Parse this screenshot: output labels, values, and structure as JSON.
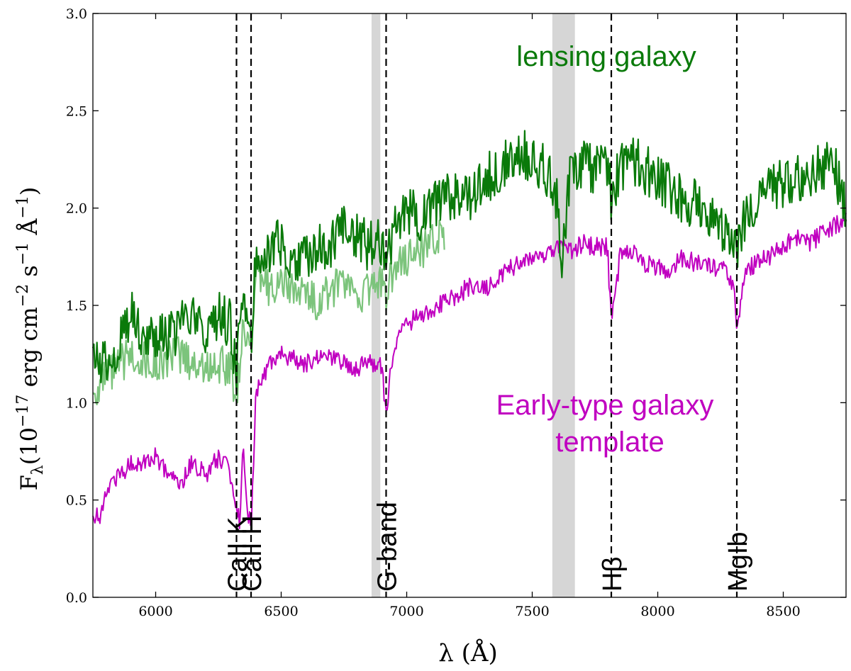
{
  "chart_data": {
    "type": "line",
    "xlabel": "λ (Å)",
    "ylabel": "F",
    "ylabel_sub": "λ",
    "ylabel_units_prefix": "(10",
    "ylabel_exp1": "−17",
    "ylabel_units_mid": " erg cm",
    "ylabel_exp2": "−2",
    "ylabel_units_mid2": " s",
    "ylabel_exp3": "−1",
    "ylabel_units_mid3": " Å",
    "ylabel_exp4": "−1",
    "ylabel_units_suffix": ")",
    "xlim": [
      5750,
      8750
    ],
    "ylim": [
      0.0,
      3.0
    ],
    "xticks": [
      6000,
      6500,
      7000,
      7500,
      8000,
      8500
    ],
    "xtick_labels": [
      "6000",
      "6500",
      "7000",
      "7500",
      "8000",
      "8500"
    ],
    "yticks": [
      0.0,
      0.5,
      1.0,
      1.5,
      2.0,
      2.5,
      3.0
    ],
    "ytick_labels": [
      "0.0",
      "0.5",
      "1.0",
      "1.5",
      "2.0",
      "2.5",
      "3.0"
    ],
    "shaded_bands": [
      {
        "x0": 6860,
        "x1": 6895
      },
      {
        "x0": 7580,
        "x1": 7670
      }
    ],
    "lines": [
      {
        "x": 6322,
        "label": "CaII K"
      },
      {
        "x": 6380,
        "label": "CaII H"
      },
      {
        "x": 6918,
        "label": "G-band"
      },
      {
        "x": 7815,
        "label": "Hβ"
      },
      {
        "x": 8315,
        "label": "MgIb"
      }
    ],
    "annotations": {
      "lensing": "lensing galaxy",
      "template_line1": "Early-type galaxy",
      "template_line2": "template"
    },
    "colors": {
      "lensing": "#0a7a0a",
      "lensing_faint": "#7cc47c",
      "template": "#c000c0",
      "band": "#d6d6d6"
    },
    "series": [
      {
        "name": "lensing galaxy",
        "x": [
          5750,
          5800,
          5850,
          5900,
          5950,
          6000,
          6050,
          6100,
          6150,
          6200,
          6250,
          6300,
          6322,
          6340,
          6360,
          6380,
          6400,
          6450,
          6500,
          6550,
          6600,
          6650,
          6700,
          6750,
          6800,
          6850,
          6900,
          6918,
          6950,
          7000,
          7050,
          7100,
          7150,
          7200,
          7250,
          7300,
          7350,
          7400,
          7450,
          7500,
          7550,
          7600,
          7615,
          7650,
          7700,
          7750,
          7800,
          7815,
          7850,
          7900,
          7950,
          8000,
          8050,
          8100,
          8150,
          8200,
          8250,
          8300,
          8315,
          8350,
          8400,
          8450,
          8500,
          8550,
          8600,
          8650,
          8700,
          8750
        ],
        "values": [
          1.2,
          1.22,
          1.28,
          1.48,
          1.35,
          1.35,
          1.32,
          1.4,
          1.42,
          1.35,
          1.45,
          1.4,
          1.12,
          1.48,
          1.55,
          1.3,
          1.8,
          1.78,
          1.82,
          1.7,
          1.75,
          1.8,
          1.82,
          1.88,
          1.85,
          1.8,
          1.82,
          1.7,
          1.9,
          2.0,
          1.95,
          2.02,
          2.05,
          2.08,
          2.05,
          2.15,
          2.18,
          2.25,
          2.3,
          2.25,
          2.2,
          2.05,
          1.65,
          2.2,
          2.22,
          2.2,
          2.22,
          2.05,
          2.2,
          2.25,
          2.2,
          2.15,
          2.1,
          2.05,
          2.02,
          1.95,
          1.9,
          1.85,
          1.8,
          1.95,
          2.05,
          2.1,
          2.12,
          2.15,
          2.18,
          2.2,
          2.22,
          2.0
        ]
      },
      {
        "name": "lensing galaxy (faint)",
        "x": [
          5750,
          5800,
          5850,
          5900,
          5950,
          6000,
          6050,
          6100,
          6150,
          6200,
          6250,
          6300,
          6322,
          6340,
          6360,
          6380,
          6400,
          6450,
          6500,
          6550,
          6600,
          6650,
          6700,
          6750,
          6800,
          6850,
          6900,
          6918,
          6950,
          7000,
          7050,
          7100,
          7150
        ],
        "values": [
          1.05,
          1.12,
          1.18,
          1.25,
          1.22,
          1.2,
          1.22,
          1.25,
          1.2,
          1.18,
          1.2,
          1.18,
          1.0,
          1.3,
          1.4,
          1.25,
          1.65,
          1.6,
          1.62,
          1.58,
          1.55,
          1.52,
          1.58,
          1.6,
          1.55,
          1.58,
          1.62,
          1.55,
          1.7,
          1.75,
          1.78,
          1.82,
          1.85
        ]
      },
      {
        "name": "Early-type galaxy template",
        "x": [
          5750,
          5780,
          5800,
          5850,
          5900,
          5950,
          6000,
          6050,
          6100,
          6150,
          6200,
          6250,
          6280,
          6300,
          6322,
          6335,
          6350,
          6365,
          6380,
          6400,
          6450,
          6500,
          6550,
          6600,
          6650,
          6700,
          6750,
          6800,
          6850,
          6900,
          6918,
          6950,
          7000,
          7050,
          7100,
          7150,
          7200,
          7250,
          7300,
          7350,
          7400,
          7450,
          7500,
          7550,
          7600,
          7650,
          7700,
          7750,
          7800,
          7815,
          7850,
          7900,
          7950,
          8000,
          8050,
          8100,
          8150,
          8200,
          8250,
          8300,
          8315,
          8350,
          8400,
          8450,
          8500,
          8550,
          8600,
          8650,
          8700,
          8750
        ],
        "values": [
          0.45,
          0.38,
          0.55,
          0.62,
          0.68,
          0.7,
          0.72,
          0.62,
          0.58,
          0.7,
          0.62,
          0.72,
          0.7,
          0.62,
          0.45,
          0.38,
          0.8,
          0.45,
          0.35,
          1.05,
          1.2,
          1.25,
          1.22,
          1.2,
          1.25,
          1.22,
          1.2,
          1.18,
          1.22,
          1.18,
          0.95,
          1.3,
          1.4,
          1.45,
          1.48,
          1.52,
          1.55,
          1.6,
          1.58,
          1.62,
          1.68,
          1.72,
          1.72,
          1.75,
          1.8,
          1.78,
          1.82,
          1.8,
          1.8,
          1.4,
          1.75,
          1.78,
          1.72,
          1.7,
          1.68,
          1.75,
          1.72,
          1.7,
          1.7,
          1.62,
          1.38,
          1.68,
          1.72,
          1.76,
          1.8,
          1.85,
          1.82,
          1.86,
          1.9,
          1.95
        ]
      }
    ]
  }
}
